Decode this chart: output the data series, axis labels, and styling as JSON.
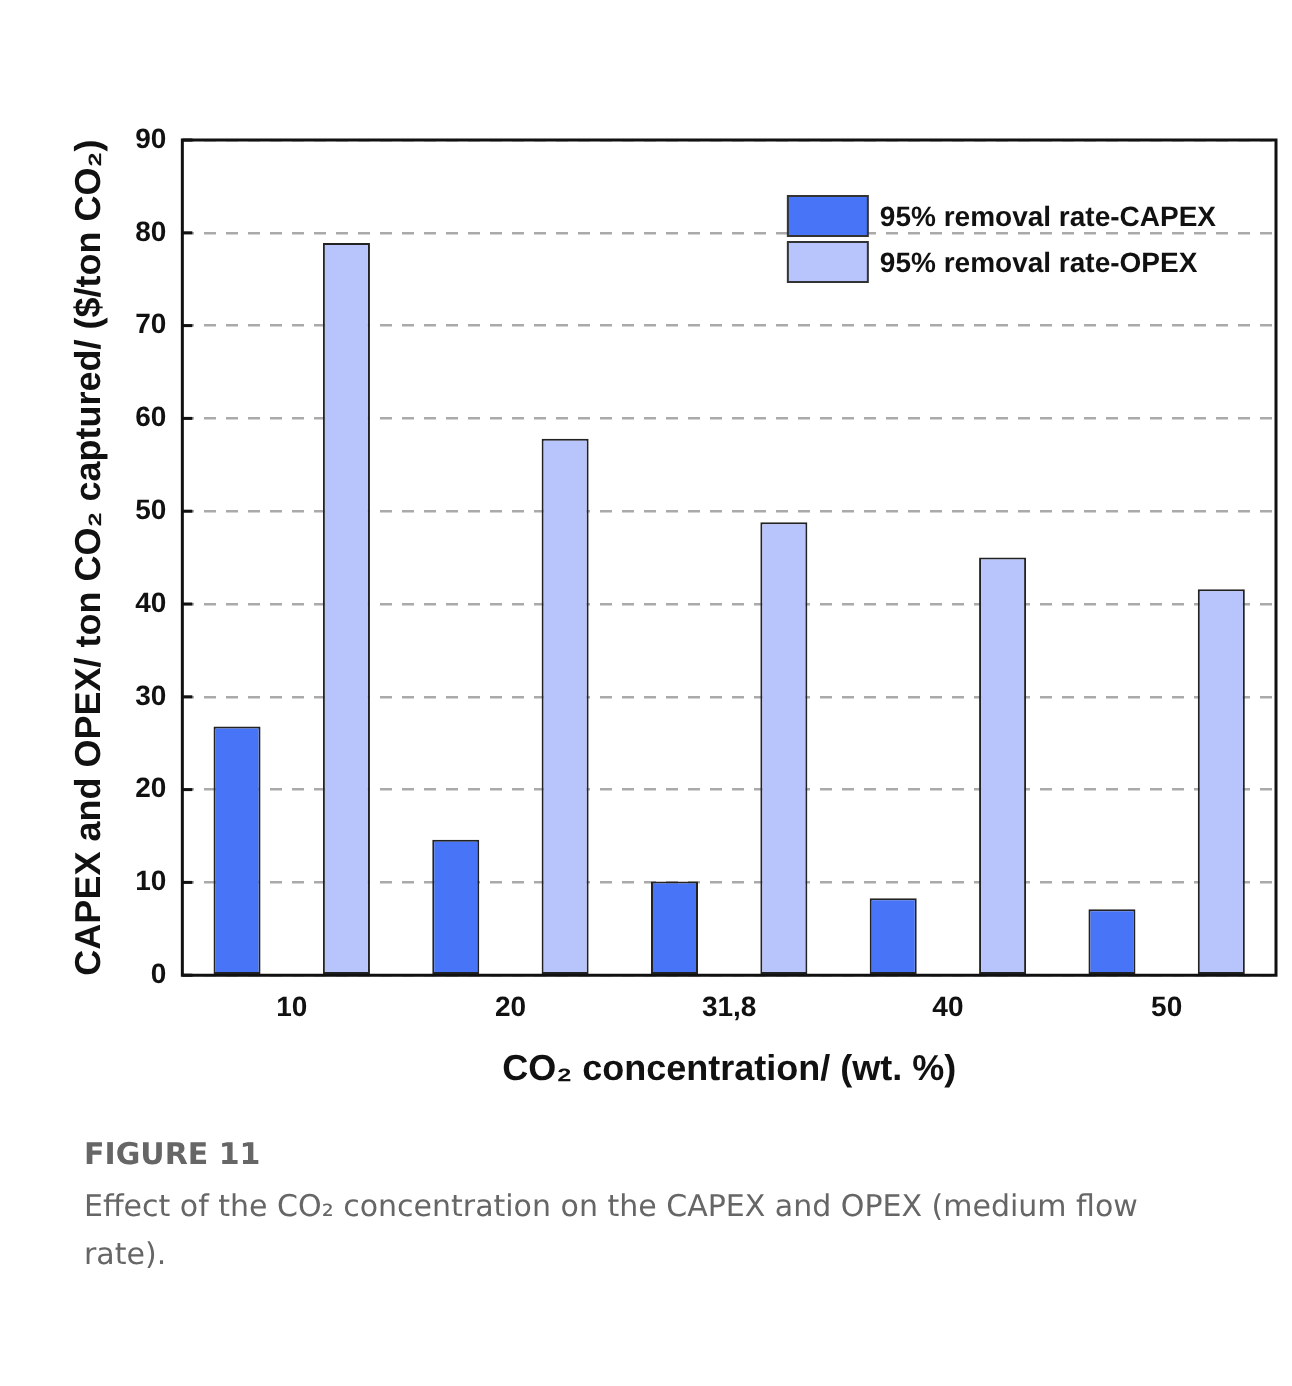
{
  "chart_data": {
    "type": "bar",
    "xlabel": "CO₂ concentration/ (wt. %)",
    "ylabel": "CAPEX and OPEX/ ton CO₂ captured/ ($/ton CO₂)",
    "categories": [
      "10",
      "20",
      "31,8",
      "40",
      "50"
    ],
    "series": [
      {
        "name": "95% removal rate-CAPEX",
        "color": "#4875f7",
        "values": [
          26.8,
          14.6,
          10.1,
          8.3,
          7.1
        ]
      },
      {
        "name": "95% removal rate-OPEX",
        "color": "#b8c4fc",
        "values": [
          78.9,
          57.8,
          48.8,
          45.0,
          41.6
        ]
      }
    ],
    "ylim": [
      0,
      90
    ],
    "yticks": [
      0,
      10,
      20,
      30,
      40,
      50,
      60,
      70,
      80,
      90
    ],
    "grid": "y",
    "legend": "top right",
    "annotations": [
      "FIGURE 11",
      "Effect of the CO₂ concentration on the CAPEX and OPEX (medium flow rate)."
    ]
  }
}
